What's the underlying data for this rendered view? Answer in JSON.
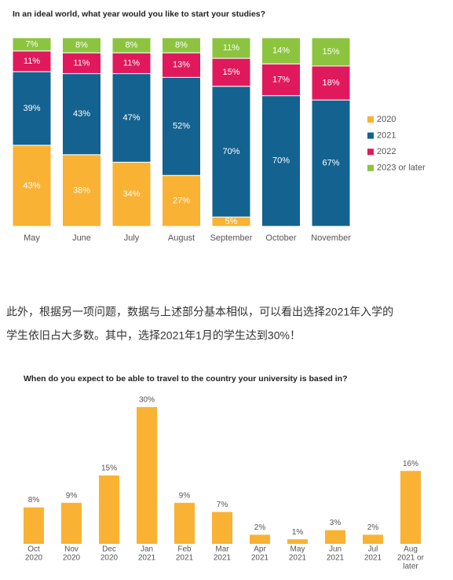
{
  "chart_data": [
    {
      "type": "bar",
      "stacked": true,
      "title": "In an ideal world, what year would you like to start your studies?",
      "categories": [
        "May",
        "June",
        "July",
        "August",
        "September",
        "October",
        "November"
      ],
      "series": [
        {
          "name": "2020",
          "color": "#f9b233",
          "values": [
            43,
            38,
            34,
            27,
            5,
            null,
            null
          ],
          "value_labels": [
            "43%",
            "38%",
            "34%",
            "27%",
            "5%",
            null,
            null
          ]
        },
        {
          "name": "2021",
          "color": "#14628f",
          "values": [
            39,
            43,
            47,
            52,
            70,
            70,
            67
          ],
          "value_labels": [
            "39%",
            "43%",
            "47%",
            "52%",
            "70%",
            "70%",
            "67%"
          ]
        },
        {
          "name": "2022",
          "color": "#e0195c",
          "values": [
            11,
            11,
            11,
            13,
            15,
            17,
            18
          ],
          "value_labels": [
            "11%",
            "11%",
            "11%",
            "13%",
            "15%",
            "17%",
            "18%"
          ]
        },
        {
          "name": "2023 or later",
          "color": "#8cc43f",
          "values": [
            7,
            8,
            8,
            8,
            11,
            14,
            15
          ],
          "value_labels": [
            "7%",
            "8%",
            "8%",
            "8%",
            "11%",
            "14%",
            "15%"
          ]
        }
      ]
    },
    {
      "type": "bar",
      "title": "When do you expect to be able to travel to the country your university is based in?",
      "categories": [
        [
          "Oct",
          "2020"
        ],
        [
          "Nov",
          "2020"
        ],
        [
          "Dec",
          "2020"
        ],
        [
          "Jan",
          "2021"
        ],
        [
          "Feb",
          "2021"
        ],
        [
          "Mar",
          "2021"
        ],
        [
          "Apr",
          "2021"
        ],
        [
          "May",
          "2021"
        ],
        [
          "Jun",
          "2021"
        ],
        [
          "Jul",
          "2021"
        ],
        [
          "Aug",
          "2021 or",
          "later"
        ]
      ],
      "values": [
        8,
        9,
        15,
        30,
        9,
        7,
        2,
        1,
        3,
        2,
        16
      ],
      "value_labels": [
        "8%",
        "9%",
        "15%",
        "30%",
        "9%",
        "7%",
        "2%",
        "1%",
        "3%",
        "2%",
        "16%"
      ],
      "color": "#f9b233"
    }
  ],
  "body_text": [
    "此外，根据另一项问题，数据与上述部分基本相似，可以看出选择2021年入学的",
    "学生依旧占大多数。其中，选择2021年1月的学生达到30%！"
  ]
}
